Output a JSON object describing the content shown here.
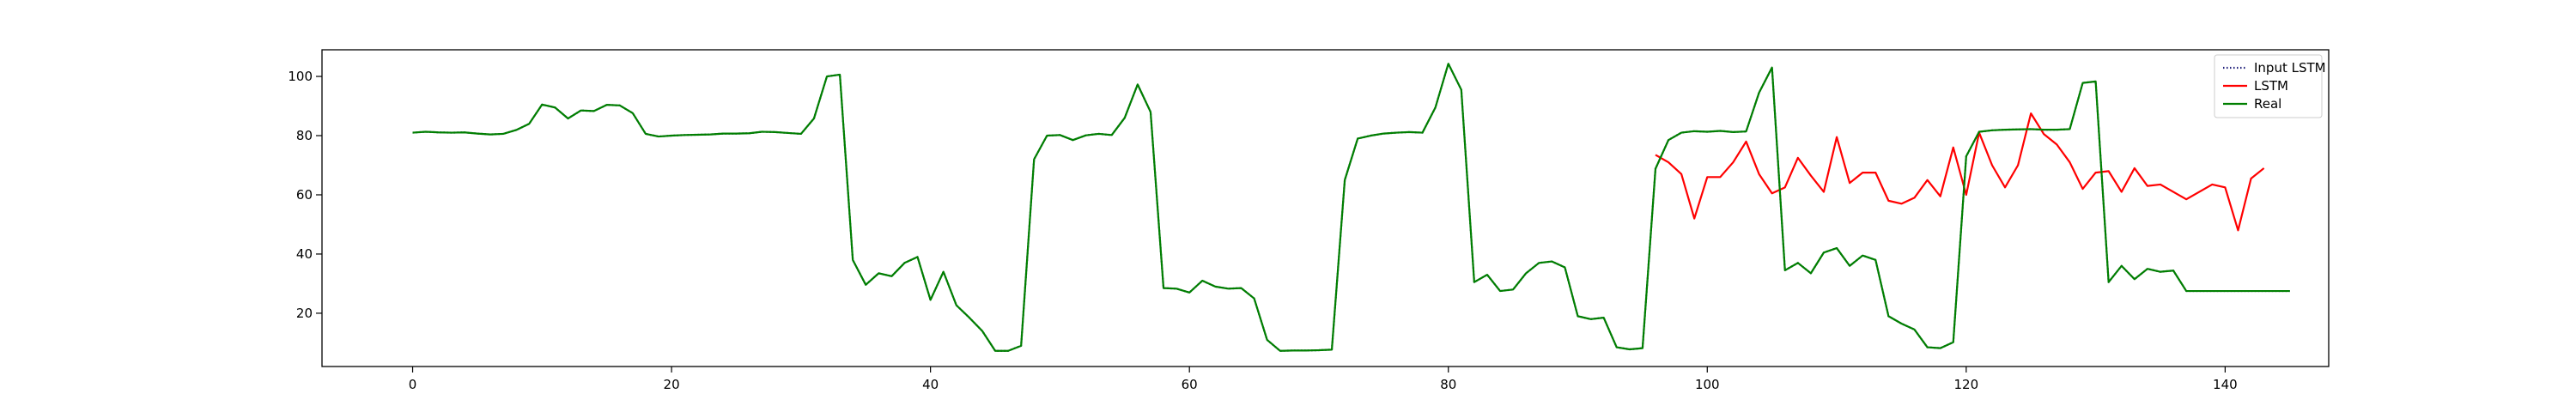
{
  "chart_data": {
    "type": "line",
    "title": "",
    "xlabel": "",
    "ylabel": "",
    "xlim": [
      -7,
      148
    ],
    "ylim": [
      2,
      109
    ],
    "xticks": [
      0,
      20,
      40,
      60,
      80,
      100,
      120,
      140
    ],
    "yticks": [
      20,
      40,
      60,
      80,
      100
    ],
    "grid": false,
    "legend_position": "top-right",
    "series": [
      {
        "name": "Input LSTM",
        "color": "#1f1f7a",
        "style": "dotted",
        "x_start": 0,
        "values": [
          81,
          81.3,
          81.1,
          81,
          81.1,
          80.7,
          80.4,
          80.6,
          81.9,
          84,
          90.5,
          89.5,
          85.8,
          88.5,
          88.3,
          90.4,
          90.2,
          87.6,
          80.6,
          79.7,
          80,
          80.2,
          80.3,
          80.4,
          80.7,
          80.7,
          80.8,
          81.3,
          81.2,
          80.9,
          80.6,
          85.8,
          100,
          100.6,
          38,
          29.6,
          33.5,
          32.5,
          37,
          39,
          24.5,
          34,
          22.7,
          18.5,
          14,
          7.3,
          7.3,
          9,
          72,
          80,
          80.2,
          78.5,
          80.1,
          80.6,
          80.2,
          86,
          97.3,
          88,
          28.5,
          28.3,
          27,
          31,
          29,
          28.3,
          28.5,
          25,
          11,
          7.3,
          7.4,
          7.4,
          7.5,
          7.7,
          65,
          79,
          80,
          80.7,
          81,
          81.2,
          81,
          89.5,
          104.3,
          95.5,
          30.5,
          33,
          27.5,
          28,
          33.5,
          37,
          37.5,
          35.5,
          19,
          18,
          18.5,
          8.5,
          7.8,
          8.2,
          68.8,
          78.5,
          81,
          81.5,
          81.3,
          81.6,
          81.2,
          81.4,
          94.5,
          103,
          34.5,
          37,
          33.5,
          40.5,
          42,
          36,
          39.5,
          38,
          19,
          16.5,
          14.5,
          8.5,
          8.2,
          10.2,
          73,
          81.3,
          81.8,
          82,
          82.1,
          82.2,
          82,
          82,
          82.2,
          97.8,
          98.3,
          30.5,
          36,
          31.5,
          35,
          34,
          34.4,
          27.5,
          27.5,
          27.5,
          27.5,
          27.5,
          27.5,
          27.5,
          27.5,
          27.5
        ]
      },
      {
        "name": "LSTM",
        "color": "#ff0000",
        "style": "solid",
        "x_start": 96,
        "values": [
          73.5,
          71,
          67,
          52,
          66,
          66,
          71,
          78,
          67,
          60.5,
          62.5,
          72.5,
          66.5,
          61,
          79.5,
          64,
          67.5,
          67.5,
          58,
          57,
          59,
          65,
          59.5,
          76,
          60,
          81,
          70,
          62.5,
          70,
          87.5,
          80.5,
          77,
          71,
          62,
          67.5,
          68,
          61,
          69,
          63,
          63.5,
          61,
          58.5,
          61,
          63.5,
          62.5,
          48,
          65.5,
          69
        ]
      },
      {
        "name": "Real",
        "color": "#007f00",
        "style": "solid",
        "x_start": 0,
        "values": [
          81,
          81.3,
          81.1,
          81,
          81.1,
          80.7,
          80.4,
          80.6,
          81.9,
          84,
          90.5,
          89.5,
          85.8,
          88.5,
          88.3,
          90.4,
          90.2,
          87.6,
          80.6,
          79.7,
          80,
          80.2,
          80.3,
          80.4,
          80.7,
          80.7,
          80.8,
          81.3,
          81.2,
          80.9,
          80.6,
          85.8,
          100,
          100.6,
          38,
          29.6,
          33.5,
          32.5,
          37,
          39,
          24.5,
          34,
          22.7,
          18.5,
          14,
          7.3,
          7.3,
          9,
          72,
          80,
          80.2,
          78.5,
          80.1,
          80.6,
          80.2,
          86,
          97.3,
          88,
          28.5,
          28.3,
          27,
          31,
          29,
          28.3,
          28.5,
          25,
          11,
          7.3,
          7.4,
          7.4,
          7.5,
          7.7,
          65,
          79,
          80,
          80.7,
          81,
          81.2,
          81,
          89.5,
          104.3,
          95.5,
          30.5,
          33,
          27.5,
          28,
          33.5,
          37,
          37.5,
          35.5,
          19,
          18,
          18.5,
          8.5,
          7.8,
          8.2,
          68.8,
          78.5,
          81,
          81.5,
          81.3,
          81.6,
          81.2,
          81.4,
          94.5,
          103,
          34.5,
          37,
          33.5,
          40.5,
          42,
          36,
          39.5,
          38,
          19,
          16.5,
          14.5,
          8.5,
          8.2,
          10.2,
          73,
          81.3,
          81.8,
          82,
          82.1,
          82.2,
          82,
          82,
          82.2,
          97.8,
          98.3,
          30.5,
          36,
          31.5,
          35,
          34,
          34.4,
          27.5,
          27.5,
          27.5,
          27.5,
          27.5,
          27.5,
          27.5,
          27.5,
          27.5
        ]
      }
    ]
  }
}
